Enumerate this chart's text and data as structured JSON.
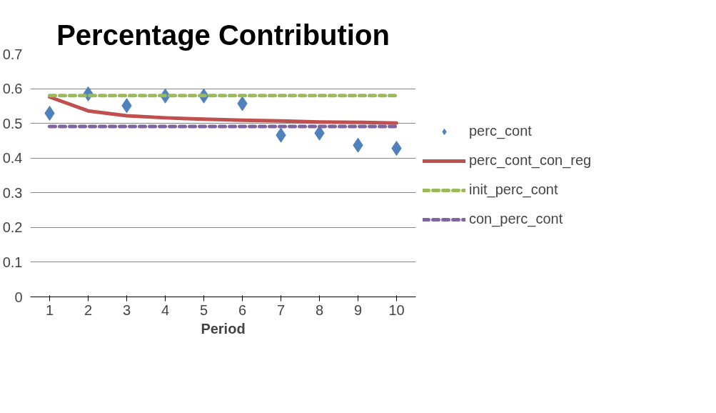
{
  "chart_data": {
    "type": "line",
    "title": "Percentage Contribution",
    "xlabel": "Period",
    "categories": [
      "1",
      "2",
      "3",
      "4",
      "5",
      "6",
      "7",
      "8",
      "9",
      "10"
    ],
    "series": [
      {
        "name": "perc_cont",
        "type": "scatter",
        "marker": "diamond",
        "color": "#4f81bd",
        "values": [
          0.529,
          0.585,
          0.551,
          0.579,
          0.579,
          0.557,
          0.466,
          0.472,
          0.437,
          0.428
        ]
      },
      {
        "name": "perc_cont_con_reg",
        "line_style": "solid",
        "color": "#c0504d",
        "values": [
          0.576,
          0.536,
          0.522,
          0.516,
          0.512,
          0.509,
          0.507,
          0.504,
          0.503,
          0.501
        ]
      },
      {
        "name": "init_perc_cont",
        "line_style": "dashed",
        "color": "#9bbb59",
        "values": [
          0.58,
          0.58,
          0.58,
          0.58,
          0.58,
          0.58,
          0.58,
          0.58,
          0.58,
          0.58
        ]
      },
      {
        "name": "con_perc_cont",
        "line_style": "dashed",
        "color": "#8064a2",
        "values": [
          0.491,
          0.491,
          0.491,
          0.491,
          0.491,
          0.491,
          0.491,
          0.491,
          0.491,
          0.491
        ]
      }
    ],
    "ylim": [
      0,
      0.7
    ],
    "yticks": [
      0,
      0.1,
      0.2,
      0.3,
      0.4,
      0.5,
      0.6,
      0.7
    ],
    "grid": "y",
    "legend": "right"
  }
}
